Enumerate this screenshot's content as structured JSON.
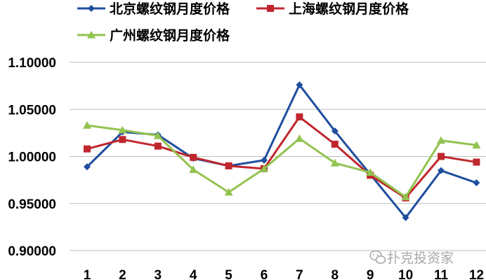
{
  "chart_data": {
    "type": "line",
    "title": "",
    "xlabel": "",
    "ylabel": "",
    "categories": [
      "1",
      "2",
      "3",
      "4",
      "5",
      "6",
      "7",
      "8",
      "9",
      "10",
      "11",
      "12"
    ],
    "yticks": [
      "0.90000",
      "0.95000",
      "1.00000",
      "1.05000",
      "1.10000"
    ],
    "ylim": [
      0.9,
      1.1
    ],
    "grid": true,
    "legend_position": "top-left",
    "series": [
      {
        "name": "北京螺纹钢月度价格",
        "color": "#1f4e9e",
        "marker": "diamond",
        "values": [
          0.989,
          1.026,
          1.023,
          0.998,
          0.99,
          0.996,
          1.076,
          1.027,
          0.981,
          0.935,
          0.985,
          0.972
        ]
      },
      {
        "name": "上海螺纹钢月度价格",
        "color": "#c0262d",
        "marker": "square",
        "values": [
          1.008,
          1.018,
          1.011,
          0.999,
          0.99,
          0.987,
          1.042,
          1.013,
          0.98,
          0.956,
          1.0,
          0.994
        ]
      },
      {
        "name": "广州螺纹钢月度价格",
        "color": "#92c350",
        "marker": "triangle",
        "values": [
          1.033,
          1.028,
          1.022,
          0.986,
          0.962,
          0.987,
          1.019,
          0.993,
          0.983,
          0.957,
          1.017,
          1.012
        ]
      }
    ]
  },
  "watermark": {
    "text": "扑克投资家",
    "icon": "wechat-icon"
  }
}
